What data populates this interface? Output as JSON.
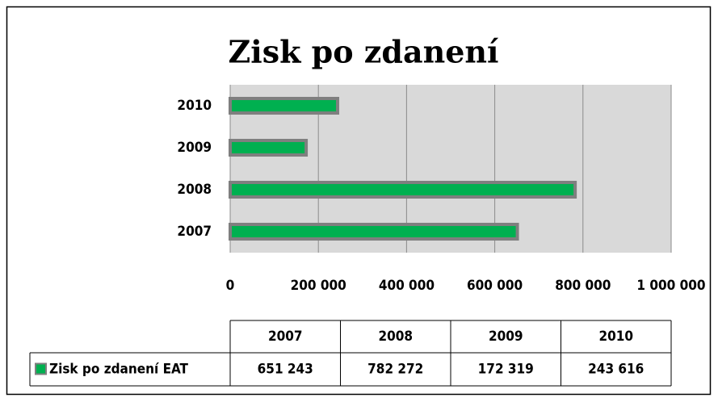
{
  "chart_data": {
    "type": "bar",
    "orientation": "horizontal",
    "title": "Zisk po zdanení",
    "categories": [
      "2007",
      "2008",
      "2009",
      "2010"
    ],
    "series": [
      {
        "name": "Zisk po zdanení EAT",
        "color": "#00b050",
        "values": [
          651243,
          782272,
          172319,
          243616
        ],
        "value_labels": [
          "651 243",
          "782 272",
          "172 319",
          "243 616"
        ]
      }
    ],
    "xlim": [
      0,
      1000000
    ],
    "xticks": [
      0,
      {
        "value": 200000,
        "label": "200 000"
      },
      {
        "value": 400000,
        "label": "400 000"
      },
      {
        "value": 600000,
        "label": "600 000"
      },
      {
        "value": 800000,
        "label": "800 000"
      },
      {
        "value": 1000000,
        "label": "1 000 000"
      }
    ],
    "grid": true,
    "data_table": true
  }
}
